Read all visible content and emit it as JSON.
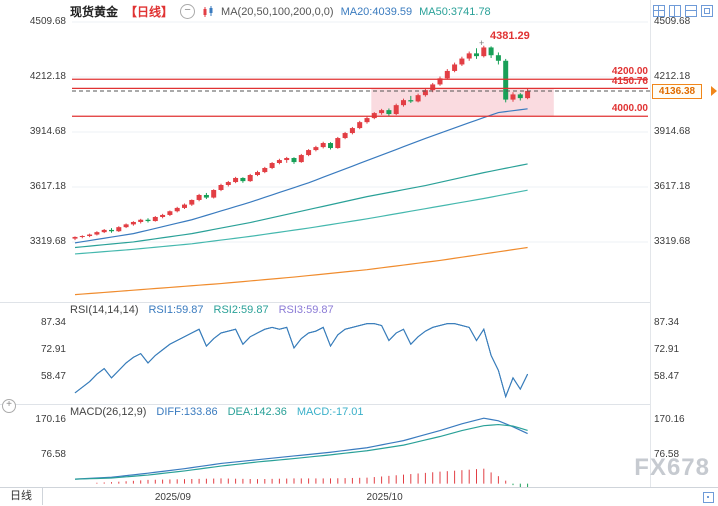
{
  "header": {
    "symbol": "现货黄金",
    "period_tag": "【日线】",
    "collapse_icon_glyph": "−",
    "ma_settings": "MA(20,50,100,200,0,0)",
    "ma20_label": "MA20:4039.59",
    "ma50_label": "MA50:3741.78"
  },
  "rsi_header": {
    "name": "RSI(14,14,14)",
    "rsi1": "RSI1:59.87",
    "rsi2": "RSI2:59.87",
    "rsi3": "RSI3:59.87"
  },
  "macd_header": {
    "name": "MACD(26,12,9)",
    "diff": "DIFF:133.86",
    "dea": "DEA:142.36",
    "macd": "MACD:-17.01"
  },
  "levels": {
    "r1": "4200.00",
    "r2": "4150.76",
    "s1": "4000.00",
    "current": "4136.38",
    "peak": "4381.29",
    "peak_marker": "+"
  },
  "bottom": {
    "tab": "日线"
  },
  "watermark": "FX678",
  "colors": {
    "up": "#e23e44",
    "down": "#18a058",
    "level_line": "#e03333",
    "badge": "#f0861a",
    "ma20": "#3a7bbf",
    "ma50": "#2aa198",
    "ma100": "#45b8ae",
    "ma200": "#f08c2e"
  },
  "chart_data": {
    "type": "candlestick",
    "title": "现货黄金 日线 (Spot Gold Daily)",
    "axis": {
      "main_ticks": [
        "4509.68",
        "4212.18",
        "3914.68",
        "3617.18",
        "3319.68"
      ],
      "rsi_ticks": [
        "87.34",
        "72.91",
        "58.47"
      ],
      "macd_ticks": [
        "170.16",
        "76.58"
      ],
      "time_ticks": [
        {
          "label": "2025/09",
          "idx": 13
        },
        {
          "label": "2025/10",
          "idx": 42
        }
      ]
    },
    "up_color": "#e23e44",
    "down_color": "#18a058",
    "candles": [
      [
        3338,
        3350,
        3330,
        3347
      ],
      [
        3347,
        3356,
        3340,
        3352
      ],
      [
        3352,
        3365,
        3346,
        3360
      ],
      [
        3360,
        3378,
        3355,
        3373
      ],
      [
        3373,
        3390,
        3368,
        3385
      ],
      [
        3385,
        3395,
        3370,
        3378
      ],
      [
        3378,
        3405,
        3374,
        3400
      ],
      [
        3400,
        3420,
        3395,
        3415
      ],
      [
        3415,
        3432,
        3408,
        3428
      ],
      [
        3428,
        3445,
        3420,
        3440
      ],
      [
        3440,
        3448,
        3425,
        3433
      ],
      [
        3433,
        3460,
        3430,
        3455
      ],
      [
        3455,
        3472,
        3448,
        3466
      ],
      [
        3466,
        3490,
        3460,
        3486
      ],
      [
        3486,
        3510,
        3480,
        3504
      ],
      [
        3504,
        3528,
        3498,
        3522
      ],
      [
        3522,
        3550,
        3515,
        3547
      ],
      [
        3547,
        3580,
        3540,
        3574
      ],
      [
        3574,
        3585,
        3552,
        3560
      ],
      [
        3560,
        3605,
        3555,
        3601
      ],
      [
        3601,
        3635,
        3595,
        3628
      ],
      [
        3628,
        3650,
        3620,
        3644
      ],
      [
        3644,
        3672,
        3638,
        3666
      ],
      [
        3666,
        3670,
        3640,
        3649
      ],
      [
        3649,
        3688,
        3645,
        3682
      ],
      [
        3682,
        3705,
        3676,
        3698
      ],
      [
        3698,
        3726,
        3692,
        3720
      ],
      [
        3720,
        3752,
        3714,
        3747
      ],
      [
        3747,
        3770,
        3740,
        3763
      ],
      [
        3763,
        3780,
        3748,
        3774
      ],
      [
        3774,
        3778,
        3742,
        3752
      ],
      [
        3752,
        3796,
        3748,
        3790
      ],
      [
        3790,
        3822,
        3784,
        3817
      ],
      [
        3817,
        3840,
        3810,
        3833
      ],
      [
        3833,
        3862,
        3826,
        3855
      ],
      [
        3855,
        3860,
        3820,
        3828
      ],
      [
        3828,
        3888,
        3824,
        3882
      ],
      [
        3882,
        3915,
        3876,
        3909
      ],
      [
        3909,
        3942,
        3902,
        3936
      ],
      [
        3936,
        3975,
        3930,
        3968
      ],
      [
        3968,
        3998,
        3960,
        3990
      ],
      [
        3990,
        4022,
        3984,
        4017
      ],
      [
        4017,
        4040,
        4008,
        4033
      ],
      [
        4033,
        4042,
        4000,
        4012
      ],
      [
        4012,
        4068,
        4006,
        4060
      ],
      [
        4060,
        4095,
        4052,
        4087
      ],
      [
        4087,
        4110,
        4072,
        4080
      ],
      [
        4080,
        4122,
        4075,
        4114
      ],
      [
        4114,
        4150,
        4106,
        4141
      ],
      [
        4141,
        4180,
        4130,
        4172
      ],
      [
        4172,
        4215,
        4165,
        4205
      ],
      [
        4205,
        4255,
        4198,
        4245
      ],
      [
        4245,
        4290,
        4238,
        4280
      ],
      [
        4280,
        4322,
        4272,
        4312
      ],
      [
        4312,
        4350,
        4300,
        4340
      ],
      [
        4340,
        4368,
        4310,
        4325
      ],
      [
        4325,
        4381.29,
        4318,
        4372
      ],
      [
        4372,
        4378,
        4315,
        4330
      ],
      [
        4330,
        4345,
        4280,
        4300
      ],
      [
        4300,
        4310,
        4075,
        4090
      ],
      [
        4090,
        4130,
        4078,
        4118
      ],
      [
        4118,
        4125,
        4085,
        4098
      ],
      [
        4098,
        4148,
        4092,
        4136.38
      ]
    ],
    "ma_lines": [
      {
        "name": "MA20",
        "value": 4039.59,
        "color": "#3a7bbf",
        "keys": [
          [
            0,
            3315
          ],
          [
            8,
            3365
          ],
          [
            16,
            3440
          ],
          [
            24,
            3535
          ],
          [
            32,
            3640
          ],
          [
            40,
            3760
          ],
          [
            48,
            3880
          ],
          [
            54,
            3965
          ],
          [
            58,
            4020
          ],
          [
            62,
            4040
          ]
        ]
      },
      {
        "name": "MA50",
        "value": 3741.78,
        "color": "#2aa198",
        "keys": [
          [
            0,
            3290
          ],
          [
            8,
            3320
          ],
          [
            16,
            3365
          ],
          [
            24,
            3425
          ],
          [
            32,
            3495
          ],
          [
            40,
            3565
          ],
          [
            48,
            3625
          ],
          [
            56,
            3695
          ],
          [
            62,
            3742
          ]
        ]
      },
      {
        "name": "MA100",
        "color": "#45b8ae",
        "keys": [
          [
            0,
            3255
          ],
          [
            8,
            3280
          ],
          [
            16,
            3310
          ],
          [
            24,
            3350
          ],
          [
            32,
            3395
          ],
          [
            40,
            3445
          ],
          [
            48,
            3500
          ],
          [
            56,
            3555
          ],
          [
            62,
            3600
          ]
        ]
      },
      {
        "name": "MA200",
        "color": "#f08c2e",
        "keys": [
          [
            0,
            3035
          ],
          [
            10,
            3065
          ],
          [
            20,
            3095
          ],
          [
            30,
            3130
          ],
          [
            40,
            3170
          ],
          [
            50,
            3220
          ],
          [
            62,
            3290
          ]
        ]
      }
    ],
    "rsi": {
      "current": 59.87,
      "colors": [
        "#8b7bd6",
        "#2aa198",
        "#3a7bbf"
      ],
      "values": [
        50,
        53,
        56,
        60,
        63,
        58,
        62,
        66,
        69,
        71,
        66,
        70,
        73,
        76,
        78,
        80,
        82,
        84,
        75,
        79,
        82,
        83,
        84,
        76,
        80,
        82,
        84,
        85,
        84,
        85,
        74,
        79,
        82,
        83,
        85,
        75,
        81,
        84,
        85,
        86,
        87,
        87,
        86,
        78,
        82,
        84,
        76,
        80,
        83,
        85,
        86,
        87,
        87,
        86,
        85,
        78,
        84,
        70,
        62,
        48,
        58,
        52,
        60
      ]
    },
    "macd": {
      "diff_current": 133.86,
      "dea_current": 142.36,
      "macd_current": -17.01,
      "diff_color": "#3a7bbf",
      "dea_color": "#2aa198",
      "pos_color": "#e23e44",
      "neg_color": "#18a058",
      "diff_keys": [
        [
          0,
          12
        ],
        [
          5,
          17
        ],
        [
          10,
          28
        ],
        [
          15,
          40
        ],
        [
          20,
          54
        ],
        [
          25,
          64
        ],
        [
          30,
          74
        ],
        [
          35,
          84
        ],
        [
          40,
          96
        ],
        [
          45,
          115
        ],
        [
          50,
          142
        ],
        [
          53,
          160
        ],
        [
          56,
          175
        ],
        [
          58,
          168
        ],
        [
          60,
          152
        ],
        [
          62,
          133.86
        ]
      ],
      "dea_keys": [
        [
          0,
          12
        ],
        [
          5,
          15
        ],
        [
          10,
          23
        ],
        [
          15,
          34
        ],
        [
          20,
          47
        ],
        [
          25,
          58
        ],
        [
          30,
          67
        ],
        [
          35,
          77
        ],
        [
          40,
          88
        ],
        [
          45,
          103
        ],
        [
          50,
          126
        ],
        [
          53,
          142
        ],
        [
          56,
          155
        ],
        [
          58,
          158
        ],
        [
          60,
          154
        ],
        [
          62,
          142.36
        ]
      ]
    },
    "levels_prices": [
      4200.0,
      4150.76,
      4000.0
    ],
    "current_price": 4136.38,
    "peak_price": 4381.29,
    "zone": {
      "p1": 4150.76,
      "p2": 4000.0,
      "i1": 41,
      "i2": 66,
      "color": "#f5b8c2"
    }
  }
}
